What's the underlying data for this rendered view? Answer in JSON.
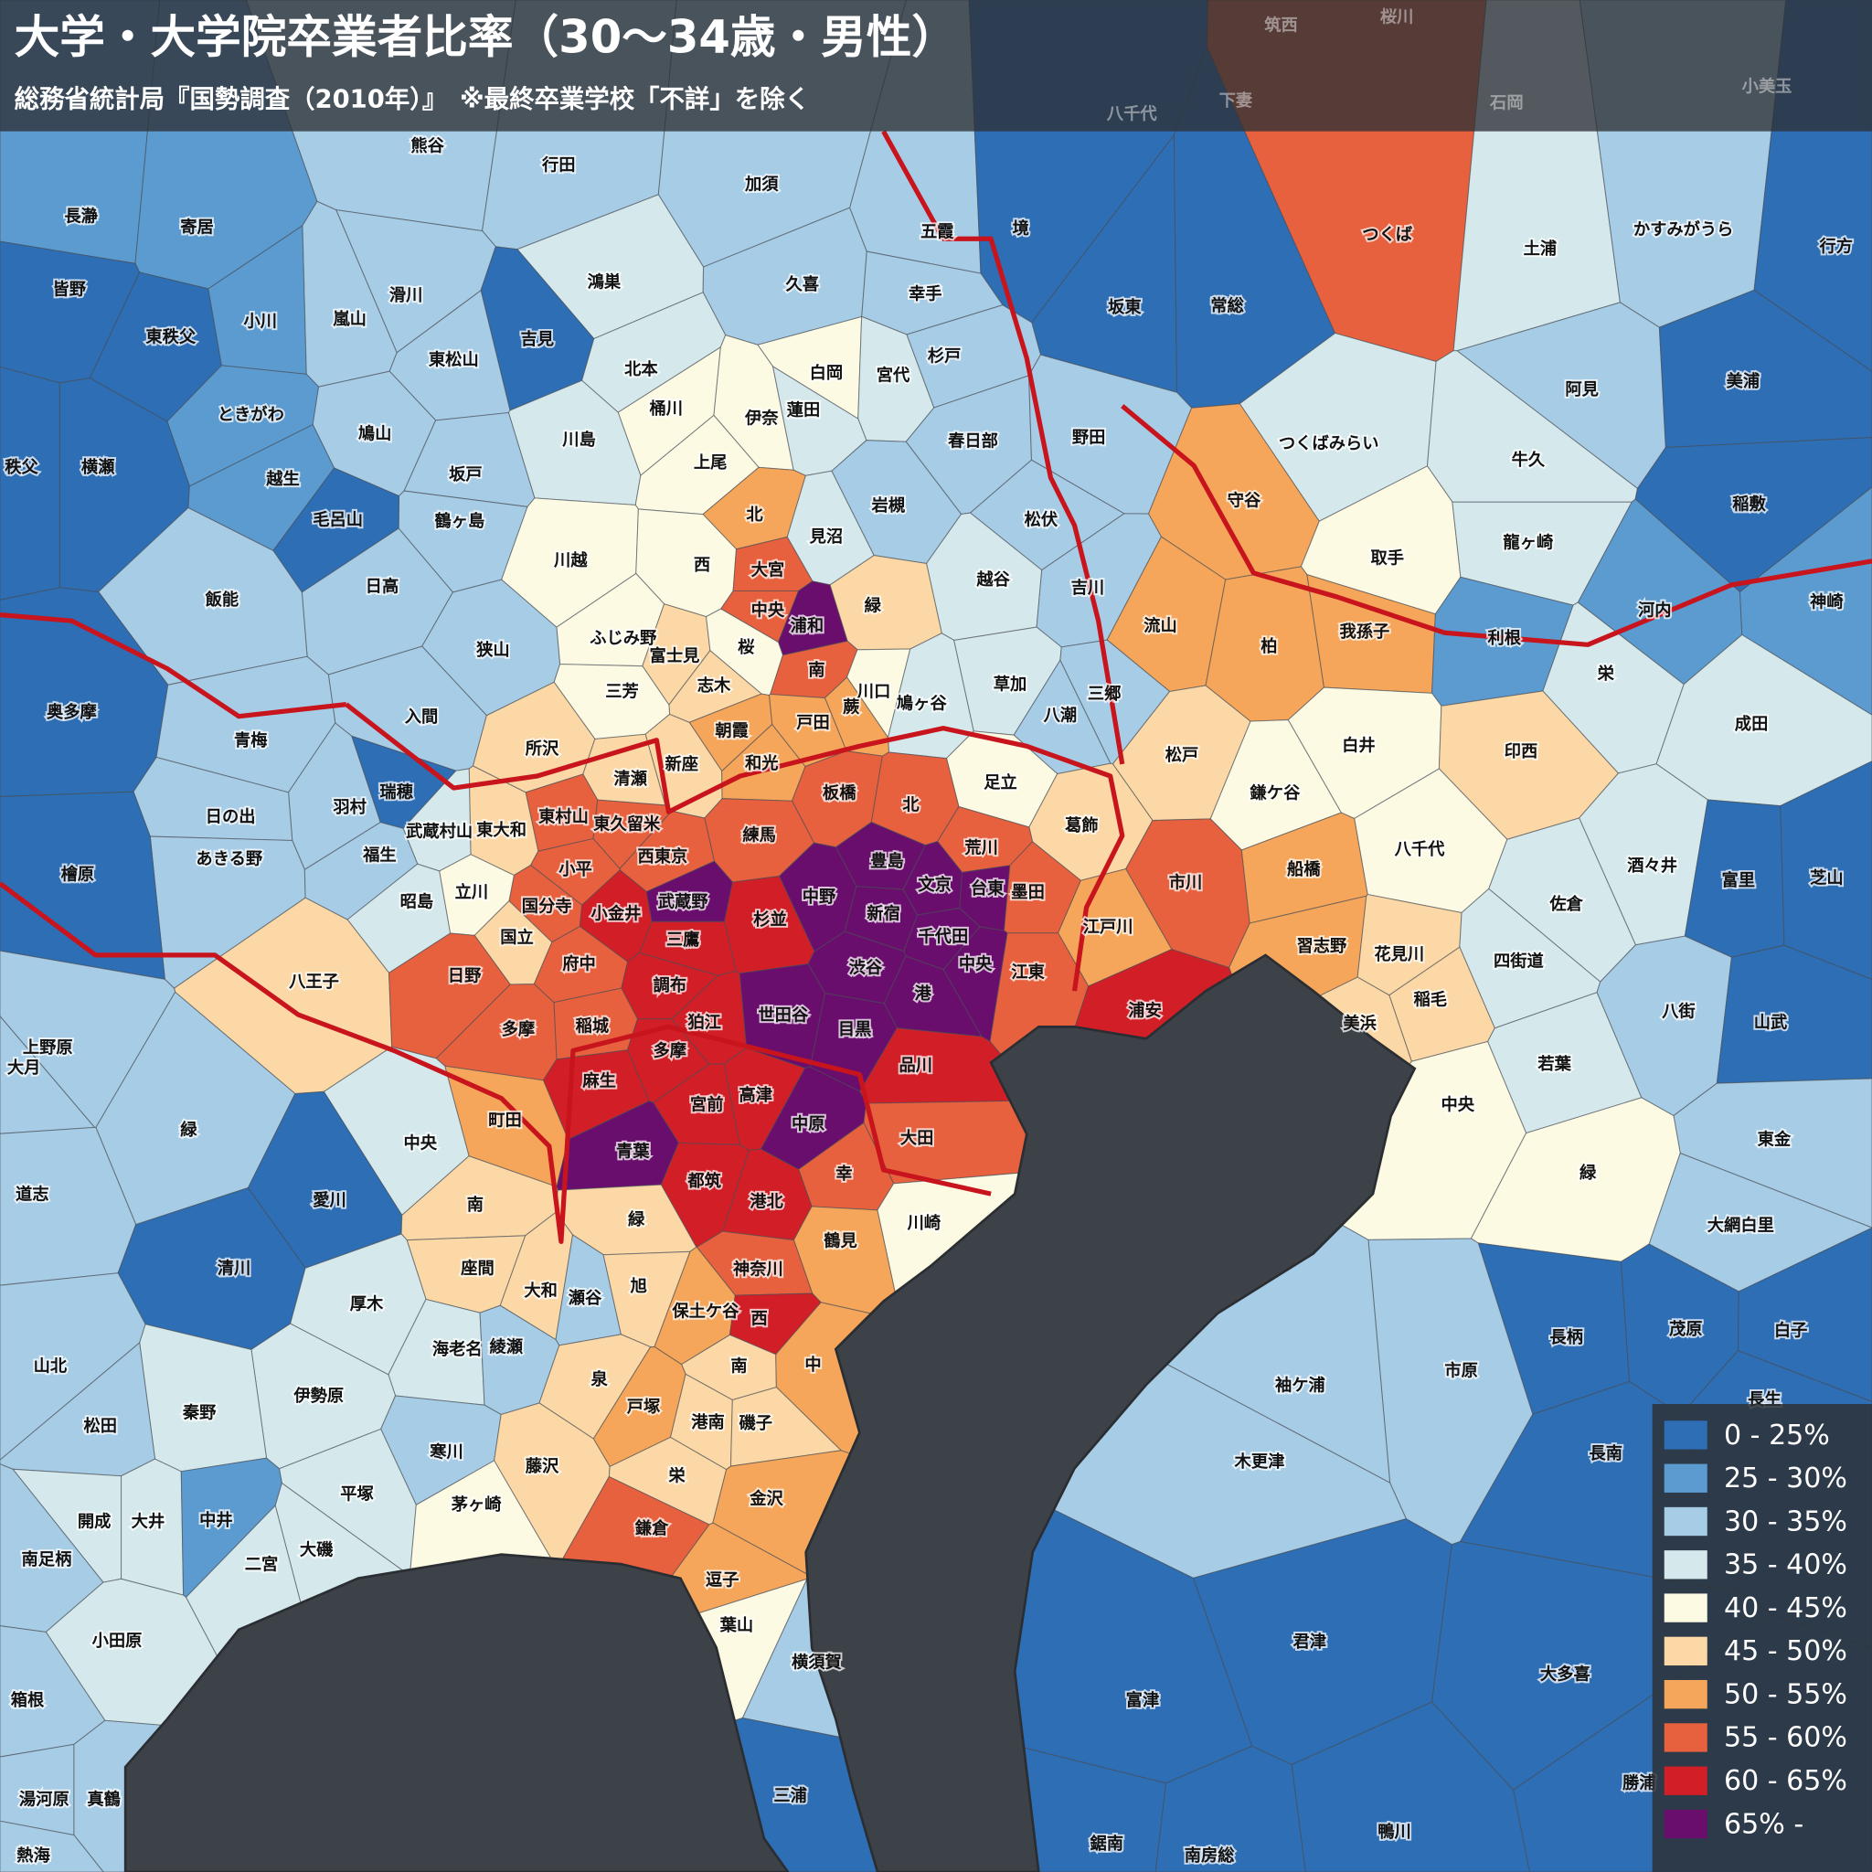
{
  "title": "大学・大学院卒業者比率（30〜34歳・男性）",
  "subtitle": "総務省統計局『国勢調査（2010年）』　※最終卒業学校「不詳」を除く",
  "legend": [
    {
      "label": "0 - 25%",
      "color": "#2d6eb4"
    },
    {
      "label": "25 - 30%",
      "color": "#5c9bd0"
    },
    {
      "label": "30 - 35%",
      "color": "#a7cce5"
    },
    {
      "label": "35 - 40%",
      "color": "#d5e9ec"
    },
    {
      "label": "40 - 45%",
      "color": "#fdfae4"
    },
    {
      "label": "45 - 50%",
      "color": "#fbd8a6"
    },
    {
      "label": "50 - 55%",
      "color": "#f5a65a"
    },
    {
      "label": "55 - 60%",
      "color": "#e8613e"
    },
    {
      "label": "60 - 65%",
      "color": "#d21f27"
    },
    {
      "label": "65% -",
      "color": "#6a0e6e"
    }
  ],
  "top_labels": [
    "筑西",
    "桜川",
    "小美玉",
    "石岡",
    "下妻",
    "八千代"
  ],
  "places": [
    {
      "name": "熊谷",
      "bin": 2
    },
    {
      "name": "行田",
      "bin": 2
    },
    {
      "name": "加須",
      "bin": 2
    },
    {
      "name": "長瀞",
      "bin": 1
    },
    {
      "name": "寄居",
      "bin": 1
    },
    {
      "name": "皆野",
      "bin": 0
    },
    {
      "name": "滑川",
      "bin": 2
    },
    {
      "name": "鴻巣",
      "bin": 3
    },
    {
      "name": "久喜",
      "bin": 2
    },
    {
      "name": "五霞",
      "bin": 2
    },
    {
      "name": "境",
      "bin": 0
    },
    {
      "name": "幸手",
      "bin": 2
    },
    {
      "name": "坂東",
      "bin": 0
    },
    {
      "name": "常総",
      "bin": 0
    },
    {
      "name": "つくば",
      "bin": 7
    },
    {
      "name": "土浦",
      "bin": 3
    },
    {
      "name": "かすみがうら",
      "bin": 2
    },
    {
      "name": "行方",
      "bin": 0
    },
    {
      "name": "東秩父",
      "bin": 0
    },
    {
      "name": "小川",
      "bin": 1
    },
    {
      "name": "嵐山",
      "bin": 2
    },
    {
      "name": "吉見",
      "bin": 0
    },
    {
      "name": "東松山",
      "bin": 2
    },
    {
      "name": "北本",
      "bin": 3
    },
    {
      "name": "白岡",
      "bin": 4
    },
    {
      "name": "宮代",
      "bin": 3
    },
    {
      "name": "杉戸",
      "bin": 2
    },
    {
      "name": "阿見",
      "bin": 2
    },
    {
      "name": "美浦",
      "bin": 0
    },
    {
      "name": "ときがわ",
      "bin": 1
    },
    {
      "name": "鳩山",
      "bin": 2
    },
    {
      "name": "桶川",
      "bin": 4
    },
    {
      "name": "伊奈",
      "bin": 4
    },
    {
      "name": "蓮田",
      "bin": 3
    },
    {
      "name": "川島",
      "bin": 3
    },
    {
      "name": "上尾",
      "bin": 4
    },
    {
      "name": "春日部",
      "bin": 2
    },
    {
      "name": "野田",
      "bin": 2
    },
    {
      "name": "つくばみらい",
      "bin": 3
    },
    {
      "name": "牛久",
      "bin": 3
    },
    {
      "name": "秩父",
      "bin": 0
    },
    {
      "name": "横瀬",
      "bin": 0
    },
    {
      "name": "越生",
      "bin": 1
    },
    {
      "name": "坂戸",
      "bin": 2
    },
    {
      "name": "鶴ヶ島",
      "bin": 2
    },
    {
      "name": "毛呂山",
      "bin": 0
    },
    {
      "name": "北",
      "bin": 6
    },
    {
      "name": "見沼",
      "bin": 3
    },
    {
      "name": "岩槻",
      "bin": 2
    },
    {
      "name": "松伏",
      "bin": 2
    },
    {
      "name": "守谷",
      "bin": 6
    },
    {
      "name": "取手",
      "bin": 4
    },
    {
      "name": "龍ヶ崎",
      "bin": 3
    },
    {
      "name": "稲敷",
      "bin": 0
    },
    {
      "name": "川越",
      "bin": 4
    },
    {
      "name": "西",
      "bin": 4
    },
    {
      "name": "大宮",
      "bin": 7
    },
    {
      "name": "越谷",
      "bin": 3
    },
    {
      "name": "吉川",
      "bin": 2
    },
    {
      "name": "日高",
      "bin": 2
    },
    {
      "name": "飯能",
      "bin": 2
    },
    {
      "name": "中央",
      "bin": 7
    },
    {
      "name": "浦和",
      "bin": 9
    },
    {
      "name": "緑",
      "bin": 5
    },
    {
      "name": "流山",
      "bin": 6
    },
    {
      "name": "柏",
      "bin": 6
    },
    {
      "name": "我孫子",
      "bin": 6
    },
    {
      "name": "利根",
      "bin": 1
    },
    {
      "name": "河内",
      "bin": 1
    },
    {
      "name": "神崎",
      "bin": 1
    },
    {
      "name": "ふじみ野",
      "bin": 4
    },
    {
      "name": "富士見",
      "bin": 5
    },
    {
      "name": "桜",
      "bin": 4
    },
    {
      "name": "狭山",
      "bin": 2
    },
    {
      "name": "南",
      "bin": 7
    },
    {
      "name": "志木",
      "bin": 5
    },
    {
      "name": "川口",
      "bin": 4
    },
    {
      "name": "鳩ヶ谷",
      "bin": 3
    },
    {
      "name": "草加",
      "bin": 3
    },
    {
      "name": "三郷",
      "bin": 2
    },
    {
      "name": "栄",
      "bin": 3
    },
    {
      "name": "三芳",
      "bin": 4
    },
    {
      "name": "奥多摩",
      "bin": 0
    },
    {
      "name": "入間",
      "bin": 2
    },
    {
      "name": "蕨",
      "bin": 6
    },
    {
      "name": "戸田",
      "bin": 6
    },
    {
      "name": "朝霞",
      "bin": 6
    },
    {
      "name": "八潮",
      "bin": 2
    },
    {
      "name": "成田",
      "bin": 3
    },
    {
      "name": "青梅",
      "bin": 2
    },
    {
      "name": "所沢",
      "bin": 5
    },
    {
      "name": "新座",
      "bin": 5
    },
    {
      "name": "和光",
      "bin": 6
    },
    {
      "name": "足立",
      "bin": 4
    },
    {
      "name": "松戸",
      "bin": 5
    },
    {
      "name": "白井",
      "bin": 4
    },
    {
      "name": "印西",
      "bin": 5
    },
    {
      "name": "清瀬",
      "bin": 5
    },
    {
      "name": "板橋",
      "bin": 7
    },
    {
      "name": "北",
      "bin": 7
    },
    {
      "name": "鎌ケ谷",
      "bin": 4
    },
    {
      "name": "葛飾",
      "bin": 5
    },
    {
      "name": "瑞穂",
      "bin": 0
    },
    {
      "name": "羽村",
      "bin": 2
    },
    {
      "name": "日の出",
      "bin": 2
    },
    {
      "name": "東村山",
      "bin": 7
    },
    {
      "name": "東久留米",
      "bin": 7
    },
    {
      "name": "武蔵村山",
      "bin": 3
    },
    {
      "name": "東大和",
      "bin": 5
    },
    {
      "name": "練馬",
      "bin": 7
    },
    {
      "name": "八千代",
      "bin": 4
    },
    {
      "name": "市川",
      "bin": 7
    },
    {
      "name": "船橋",
      "bin": 6
    },
    {
      "name": "荒川",
      "bin": 7
    },
    {
      "name": "豊島",
      "bin": 9
    },
    {
      "name": "あきる野",
      "bin": 2
    },
    {
      "name": "福生",
      "bin": 2
    },
    {
      "name": "西東京",
      "bin": 7
    },
    {
      "name": "小平",
      "bin": 7
    },
    {
      "name": "文京",
      "bin": 9
    },
    {
      "name": "台東",
      "bin": 9
    },
    {
      "name": "墨田",
      "bin": 7
    },
    {
      "name": "中野",
      "bin": 9
    },
    {
      "name": "酒々井",
      "bin": 3
    },
    {
      "name": "富里",
      "bin": 0
    },
    {
      "name": "芝山",
      "bin": 0
    },
    {
      "name": "檜原",
      "bin": 0
    },
    {
      "name": "国分寺",
      "bin": 7
    },
    {
      "name": "小金井",
      "bin": 8
    },
    {
      "name": "武蔵野",
      "bin": 9
    },
    {
      "name": "杉並",
      "bin": 8
    },
    {
      "name": "新宿",
      "bin": 9
    },
    {
      "name": "昭島",
      "bin": 3
    },
    {
      "name": "立川",
      "bin": 4
    },
    {
      "name": "千代田",
      "bin": 9
    },
    {
      "name": "江戸川",
      "bin": 6
    },
    {
      "name": "佐倉",
      "bin": 3
    },
    {
      "name": "国立",
      "bin": 5
    },
    {
      "name": "三鷹",
      "bin": 8
    },
    {
      "name": "府中",
      "bin": 7
    },
    {
      "name": "渋谷",
      "bin": 9
    },
    {
      "name": "中央",
      "bin": 9
    },
    {
      "name": "江東",
      "bin": 7
    },
    {
      "name": "習志野",
      "bin": 6
    },
    {
      "name": "花見川",
      "bin": 5
    },
    {
      "name": "四街道",
      "bin": 3
    },
    {
      "name": "八王子",
      "bin": 5
    },
    {
      "name": "日野",
      "bin": 7
    },
    {
      "name": "調布",
      "bin": 8
    },
    {
      "name": "港",
      "bin": 9
    },
    {
      "name": "浦安",
      "bin": 8
    },
    {
      "name": "稲毛",
      "bin": 5
    },
    {
      "name": "八街",
      "bin": 2
    },
    {
      "name": "世田谷",
      "bin": 9
    },
    {
      "name": "目黒",
      "bin": 9
    },
    {
      "name": "狛江",
      "bin": 8
    },
    {
      "name": "稲城",
      "bin": 7
    },
    {
      "name": "多摩",
      "bin": 7
    },
    {
      "name": "美浜",
      "bin": 5
    },
    {
      "name": "山武",
      "bin": 0
    },
    {
      "name": "上野原",
      "bin": 2
    },
    {
      "name": "大月",
      "bin": 2
    },
    {
      "name": "多摩",
      "bin": 8
    },
    {
      "name": "品川",
      "bin": 8
    },
    {
      "name": "若葉",
      "bin": 3
    },
    {
      "name": "麻生",
      "bin": 8
    },
    {
      "name": "町田",
      "bin": 6
    },
    {
      "name": "宮前",
      "bin": 8
    },
    {
      "name": "高津",
      "bin": 8
    },
    {
      "name": "中原",
      "bin": 9
    },
    {
      "name": "中央",
      "bin": 4
    },
    {
      "name": "緑",
      "bin": 2
    },
    {
      "name": "中央",
      "bin": 3
    },
    {
      "name": "青葉",
      "bin": 9
    },
    {
      "name": "大田",
      "bin": 7
    },
    {
      "name": "東金",
      "bin": 2
    },
    {
      "name": "幸",
      "bin": 7
    },
    {
      "name": "緑",
      "bin": 4
    },
    {
      "name": "都筑",
      "bin": 8
    },
    {
      "name": "港北",
      "bin": 8
    },
    {
      "name": "道志",
      "bin": 2
    },
    {
      "name": "愛川",
      "bin": 0
    },
    {
      "name": "南",
      "bin": 5
    },
    {
      "name": "緑",
      "bin": 5
    },
    {
      "name": "川崎",
      "bin": 4
    },
    {
      "name": "大網白里",
      "bin": 2
    },
    {
      "name": "鶴見",
      "bin": 6
    },
    {
      "name": "清川",
      "bin": 0
    },
    {
      "name": "神奈川",
      "bin": 7
    },
    {
      "name": "座間",
      "bin": 5
    },
    {
      "name": "大和",
      "bin": 5
    },
    {
      "name": "瀬谷",
      "bin": 2
    },
    {
      "name": "旭",
      "bin": 5
    },
    {
      "name": "厚木",
      "bin": 3
    },
    {
      "name": "保土ケ谷",
      "bin": 6
    },
    {
      "name": "西",
      "bin": 8
    },
    {
      "name": "海老名",
      "bin": 3
    },
    {
      "name": "綾瀬",
      "bin": 2
    },
    {
      "name": "長柄",
      "bin": 0
    },
    {
      "name": "茂原",
      "bin": 0
    },
    {
      "name": "白子",
      "bin": 0
    },
    {
      "name": "山北",
      "bin": 2
    },
    {
      "name": "南",
      "bin": 5
    },
    {
      "name": "中",
      "bin": 6
    },
    {
      "name": "市原",
      "bin": 2
    },
    {
      "name": "泉",
      "bin": 5
    },
    {
      "name": "袖ケ浦",
      "bin": 2
    },
    {
      "name": "伊勢原",
      "bin": 3
    },
    {
      "name": "秦野",
      "bin": 3
    },
    {
      "name": "戸塚",
      "bin": 6
    },
    {
      "name": "長生",
      "bin": 0
    },
    {
      "name": "松田",
      "bin": 2
    },
    {
      "name": "港南",
      "bin": 5
    },
    {
      "name": "磯子",
      "bin": 5
    },
    {
      "name": "寒川",
      "bin": 2
    },
    {
      "name": "藤沢",
      "bin": 5
    },
    {
      "name": "長南",
      "bin": 0
    },
    {
      "name": "木更津",
      "bin": 2
    },
    {
      "name": "栄",
      "bin": 5
    },
    {
      "name": "平塚",
      "bin": 3
    },
    {
      "name": "茅ヶ崎",
      "bin": 4
    },
    {
      "name": "金沢",
      "bin": 6
    },
    {
      "name": "開成",
      "bin": 3
    },
    {
      "name": "大井",
      "bin": 3
    },
    {
      "name": "中井",
      "bin": 1
    },
    {
      "name": "大磯",
      "bin": 3
    },
    {
      "name": "鎌倉",
      "bin": 7
    },
    {
      "name": "二宮",
      "bin": 3
    },
    {
      "name": "南足柄",
      "bin": 2
    },
    {
      "name": "逗子",
      "bin": 6
    },
    {
      "name": "葉山",
      "bin": 4
    },
    {
      "name": "小田原",
      "bin": 3
    },
    {
      "name": "君津",
      "bin": 0
    },
    {
      "name": "横須賀",
      "bin": 2
    },
    {
      "name": "大多喜",
      "bin": 0
    },
    {
      "name": "富津",
      "bin": 0
    },
    {
      "name": "箱根",
      "bin": 2
    },
    {
      "name": "勝浦",
      "bin": 0
    },
    {
      "name": "三浦",
      "bin": 0
    },
    {
      "name": "湯河原",
      "bin": 2
    },
    {
      "name": "真鶴",
      "bin": 2
    },
    {
      "name": "鴨川",
      "bin": 0
    },
    {
      "name": "鋸南",
      "bin": 0
    },
    {
      "name": "南房総",
      "bin": 0
    },
    {
      "name": "熱海",
      "bin": 2
    }
  ]
}
